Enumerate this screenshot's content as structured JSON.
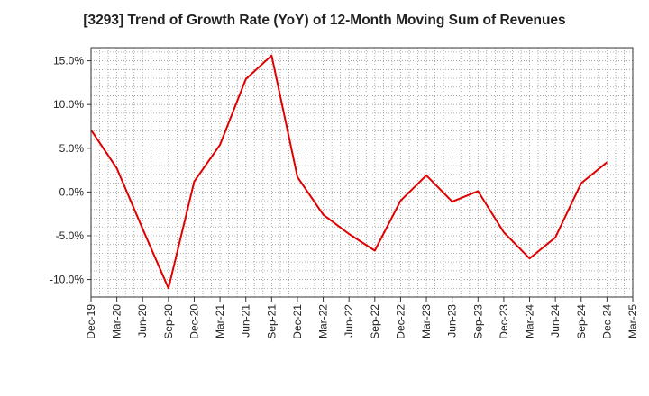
{
  "chart_data": {
    "type": "line",
    "title": "[3293]  Trend of Growth Rate (YoY) of 12-Month Moving Sum of Revenues",
    "xlabel": "",
    "ylabel": "",
    "x": [
      "Dec-19",
      "Mar-20",
      "Jun-20",
      "Sep-20",
      "Dec-20",
      "Mar-21",
      "Jun-21",
      "Sep-21",
      "Dec-21",
      "Mar-22",
      "Jun-22",
      "Sep-22",
      "Dec-22",
      "Mar-23",
      "Jun-23",
      "Sep-23",
      "Dec-23",
      "Mar-24",
      "Jun-24",
      "Sep-24",
      "Dec-24",
      "Mar-25"
    ],
    "series": [
      {
        "color": "#e00000",
        "values": [
          7.1,
          2.7,
          -4.2,
          -11.0,
          1.2,
          5.4,
          12.9,
          15.6,
          1.7,
          -2.6,
          -4.8,
          -6.7,
          -1.0,
          1.9,
          -1.1,
          0.1,
          -4.6,
          -7.6,
          -5.2,
          1.0,
          3.4,
          null
        ]
      }
    ],
    "yticks": [
      "15.0%",
      "10.0%",
      "5.0%",
      "0.0%",
      "-5.0%",
      "-10.0%"
    ],
    "ytick_values": [
      15,
      10,
      5,
      0,
      -5,
      -10
    ],
    "ylim": [
      -12,
      16.5
    ],
    "grid": true,
    "legend": "none"
  }
}
